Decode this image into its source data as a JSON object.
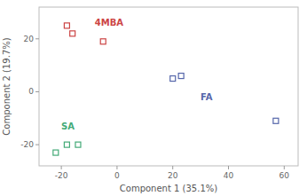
{
  "chart_data": {
    "type": "scatter",
    "x_label": "Component 1 (35.1%)",
    "y_label": "Component 2 (19.7%)",
    "series": [
      {
        "name": "4MBA",
        "color": "#cc4444",
        "x": [
          -18,
          -16,
          -5
        ],
        "values": [
          25,
          22,
          19
        ],
        "label_x": -8,
        "label_y": 26
      },
      {
        "name": "FA",
        "color": "#5566aa",
        "x": [
          20,
          23,
          57
        ],
        "values": [
          5,
          6,
          -11
        ],
        "label_x": 30,
        "label_y": -2
      },
      {
        "name": "SA",
        "color": "#44aa77",
        "x": [
          -22,
          -18,
          -14
        ],
        "values": [
          -23,
          -20,
          -20
        ],
        "label_x": -20,
        "label_y": -13
      }
    ],
    "xlim": [
      -28,
      65
    ],
    "ylim": [
      -28,
      32
    ],
    "xticks": [
      -20,
      0,
      20,
      40,
      60
    ],
    "yticks": [
      -20,
      0,
      20
    ],
    "marker": "square",
    "grid": false
  }
}
